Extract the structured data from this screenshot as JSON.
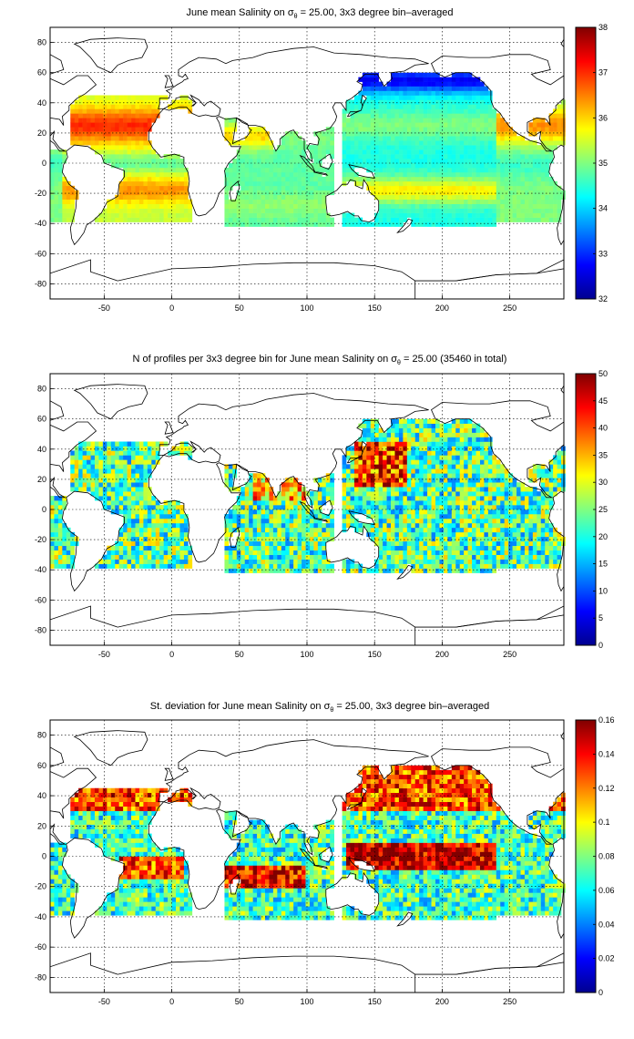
{
  "chart_data": [
    {
      "type": "heatmap",
      "title_prefix": "June mean Salinity on ",
      "title_sigma": "σ",
      "title_sub": "θ",
      "title_suffix": " = 25.00, 3x3 degree bin–averaged",
      "xlabel": "",
      "ylabel": "",
      "xlim": [
        -90,
        290
      ],
      "ylim": [
        -90,
        90
      ],
      "x_ticks": [
        -50,
        0,
        50,
        100,
        150,
        200,
        250
      ],
      "y_ticks": [
        80,
        60,
        40,
        20,
        0,
        -20,
        -40,
        -60,
        -80
      ],
      "grid": true,
      "colorbar": {
        "range": [
          32,
          38
        ],
        "ticks": [
          32,
          33,
          34,
          35,
          36,
          37,
          38
        ],
        "colormap": "jet"
      },
      "field": "salinity"
    },
    {
      "type": "heatmap",
      "title_prefix": "N of profiles per 3x3 degree bin for June mean Salinity on ",
      "title_sigma": "σ",
      "title_sub": "θ",
      "title_suffix": " = 25.00 (35460 in total)",
      "xlabel": "",
      "ylabel": "",
      "xlim": [
        -90,
        290
      ],
      "ylim": [
        -90,
        90
      ],
      "x_ticks": [
        -50,
        0,
        50,
        100,
        150,
        200,
        250
      ],
      "y_ticks": [
        80,
        60,
        40,
        20,
        0,
        -20,
        -40,
        -60,
        -80
      ],
      "grid": true,
      "colorbar": {
        "range": [
          0,
          50
        ],
        "ticks": [
          0,
          5,
          10,
          15,
          20,
          25,
          30,
          35,
          40,
          45,
          50
        ],
        "colormap": "jet"
      },
      "field": "count"
    },
    {
      "type": "heatmap",
      "title_prefix": "St. deviation for June mean Salinity on ",
      "title_sigma": "σ",
      "title_sub": "θ",
      "title_suffix": " = 25.00, 3x3 degree bin–averaged",
      "xlabel": "",
      "ylabel": "",
      "xlim": [
        -90,
        290
      ],
      "ylim": [
        -90,
        90
      ],
      "x_ticks": [
        -50,
        0,
        50,
        100,
        150,
        200,
        250
      ],
      "y_ticks": [
        80,
        60,
        40,
        20,
        0,
        -20,
        -40,
        -60,
        -80
      ],
      "grid": true,
      "colorbar": {
        "range": [
          0,
          0.16
        ],
        "ticks": [
          0,
          0.02,
          0.04,
          0.06,
          0.08,
          0.1,
          0.12,
          0.14,
          0.16
        ],
        "colormap": "jet"
      },
      "field": "stdev"
    }
  ]
}
